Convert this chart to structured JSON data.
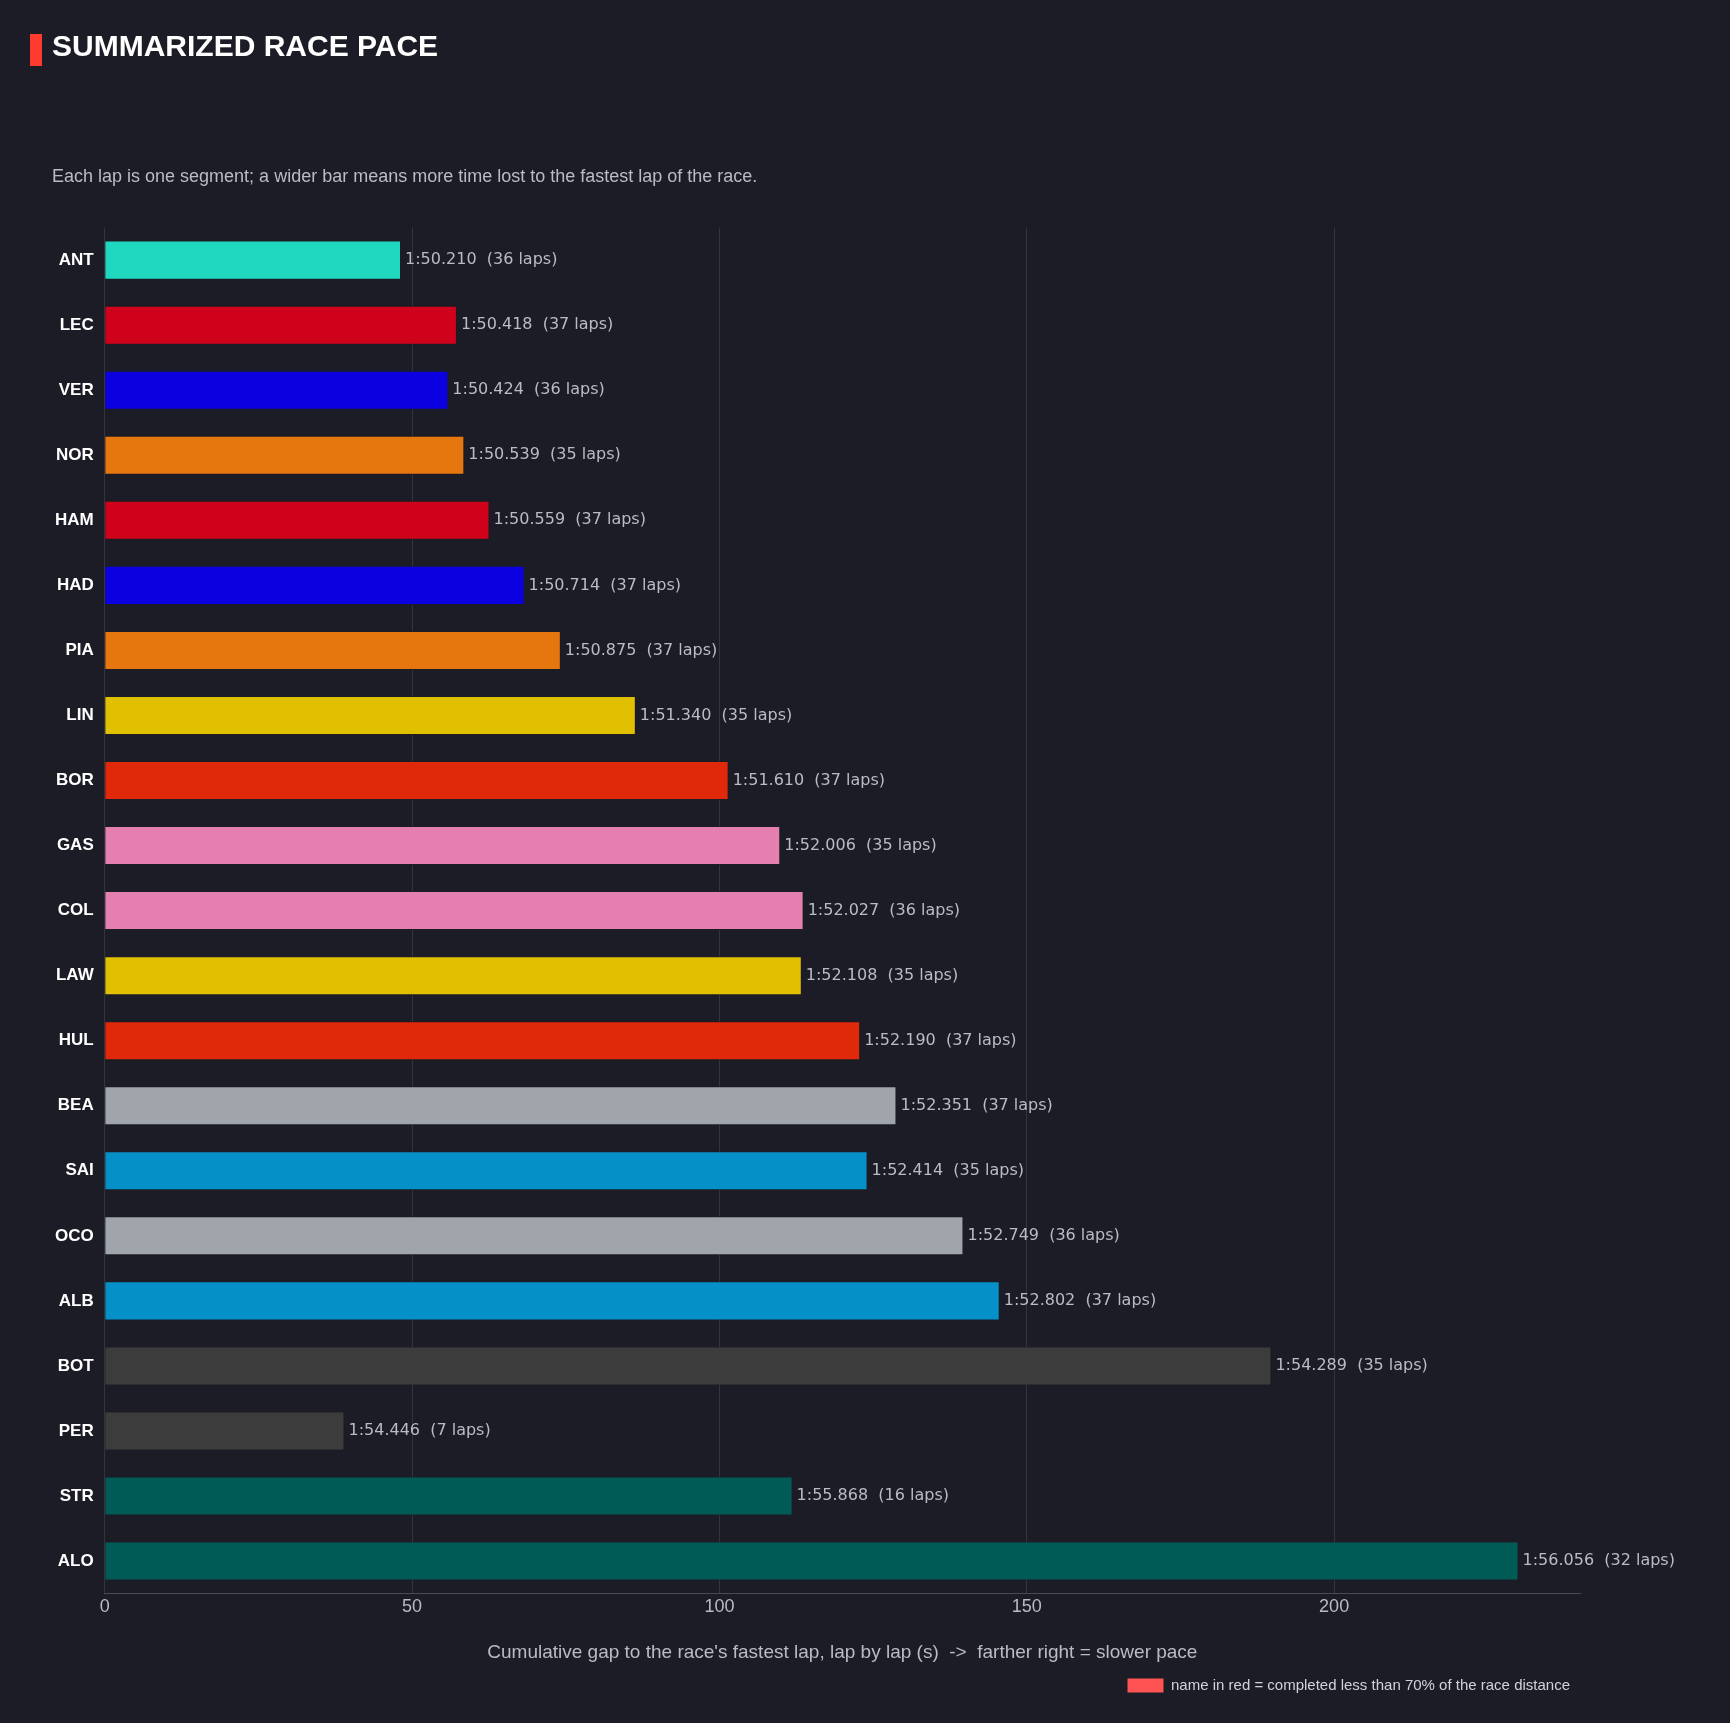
{
  "chart_data": {
    "type": "bar",
    "orientation": "horizontal",
    "title": "SUMMARIZED RACE PACE",
    "subtitle": "Each lap is one segment; a wider bar means more time lost to the fastest lap of the race.",
    "xlabel": "Cumulative gap to the race's fastest lap, lap by lap (s)  ->  farther right = slower pace",
    "categories": [
      "ANT",
      "LEC",
      "VER",
      "NOR",
      "HAM",
      "HAD",
      "PIA",
      "LIN",
      "BOR",
      "GAS",
      "COL",
      "LAW",
      "HUL",
      "BEA",
      "SAI",
      "OCO",
      "ALB",
      "BOT",
      "PER",
      "STR",
      "ALO"
    ],
    "series": [
      {
        "values": [
          48.2,
          57.3,
          55.9,
          58.5,
          62.6,
          68.3,
          74.2,
          86.4,
          101.5,
          109.9,
          113.7,
          113.4,
          122.9,
          128.8,
          124.1,
          139.7,
          145.6,
          189.8,
          39.0,
          111.9,
          230.0
        ],
        "colors": [
          "#20d8c0",
          "#d0021b",
          "#0a00e0",
          "#e6770f",
          "#d0021b",
          "#0a00e0",
          "#e6770f",
          "#e0c000",
          "#e0280a",
          "#e47fb0",
          "#e47fb0",
          "#e0c000",
          "#e0280a",
          "#a0a4ab",
          "#0590c8",
          "#a0a4ab",
          "#0590c8",
          "#3c3c3c",
          "#3c3c3c",
          "#005a55",
          "#005a55"
        ],
        "value_labels": [
          "1:50.210  (36 laps)",
          "1:50.418  (37 laps)",
          "1:50.424  (36 laps)",
          "1:50.539  (35 laps)",
          "1:50.559  (37 laps)",
          "1:50.714  (37 laps)",
          "1:50.875  (37 laps)",
          "1:51.340  (35 laps)",
          "1:51.610  (37 laps)",
          "1:52.006  (35 laps)",
          "1:52.027  (36 laps)",
          "1:52.108  (35 laps)",
          "1:52.190  (37 laps)",
          "1:52.351  (37 laps)",
          "1:52.414  (35 laps)",
          "1:52.749  (36 laps)",
          "1:52.802  (37 laps)",
          "1:54.289  (35 laps)",
          "1:54.446  (7 laps)",
          "1:55.868  (16 laps)",
          "1:56.056  (32 laps)"
        ]
      },
      {
        "name": "name in red = completed less than 70% of the race distance",
        "color": "#ff5252",
        "values": [
          null,
          null,
          null,
          null,
          null,
          null,
          null,
          null,
          null,
          null,
          null,
          null,
          null,
          null,
          null,
          null,
          null,
          null,
          null,
          null,
          null
        ]
      }
    ],
    "xlim": [
      0,
      240
    ],
    "xticks": [
      0,
      50,
      100,
      150,
      200
    ],
    "grid": "x",
    "legend": "bottom right"
  }
}
